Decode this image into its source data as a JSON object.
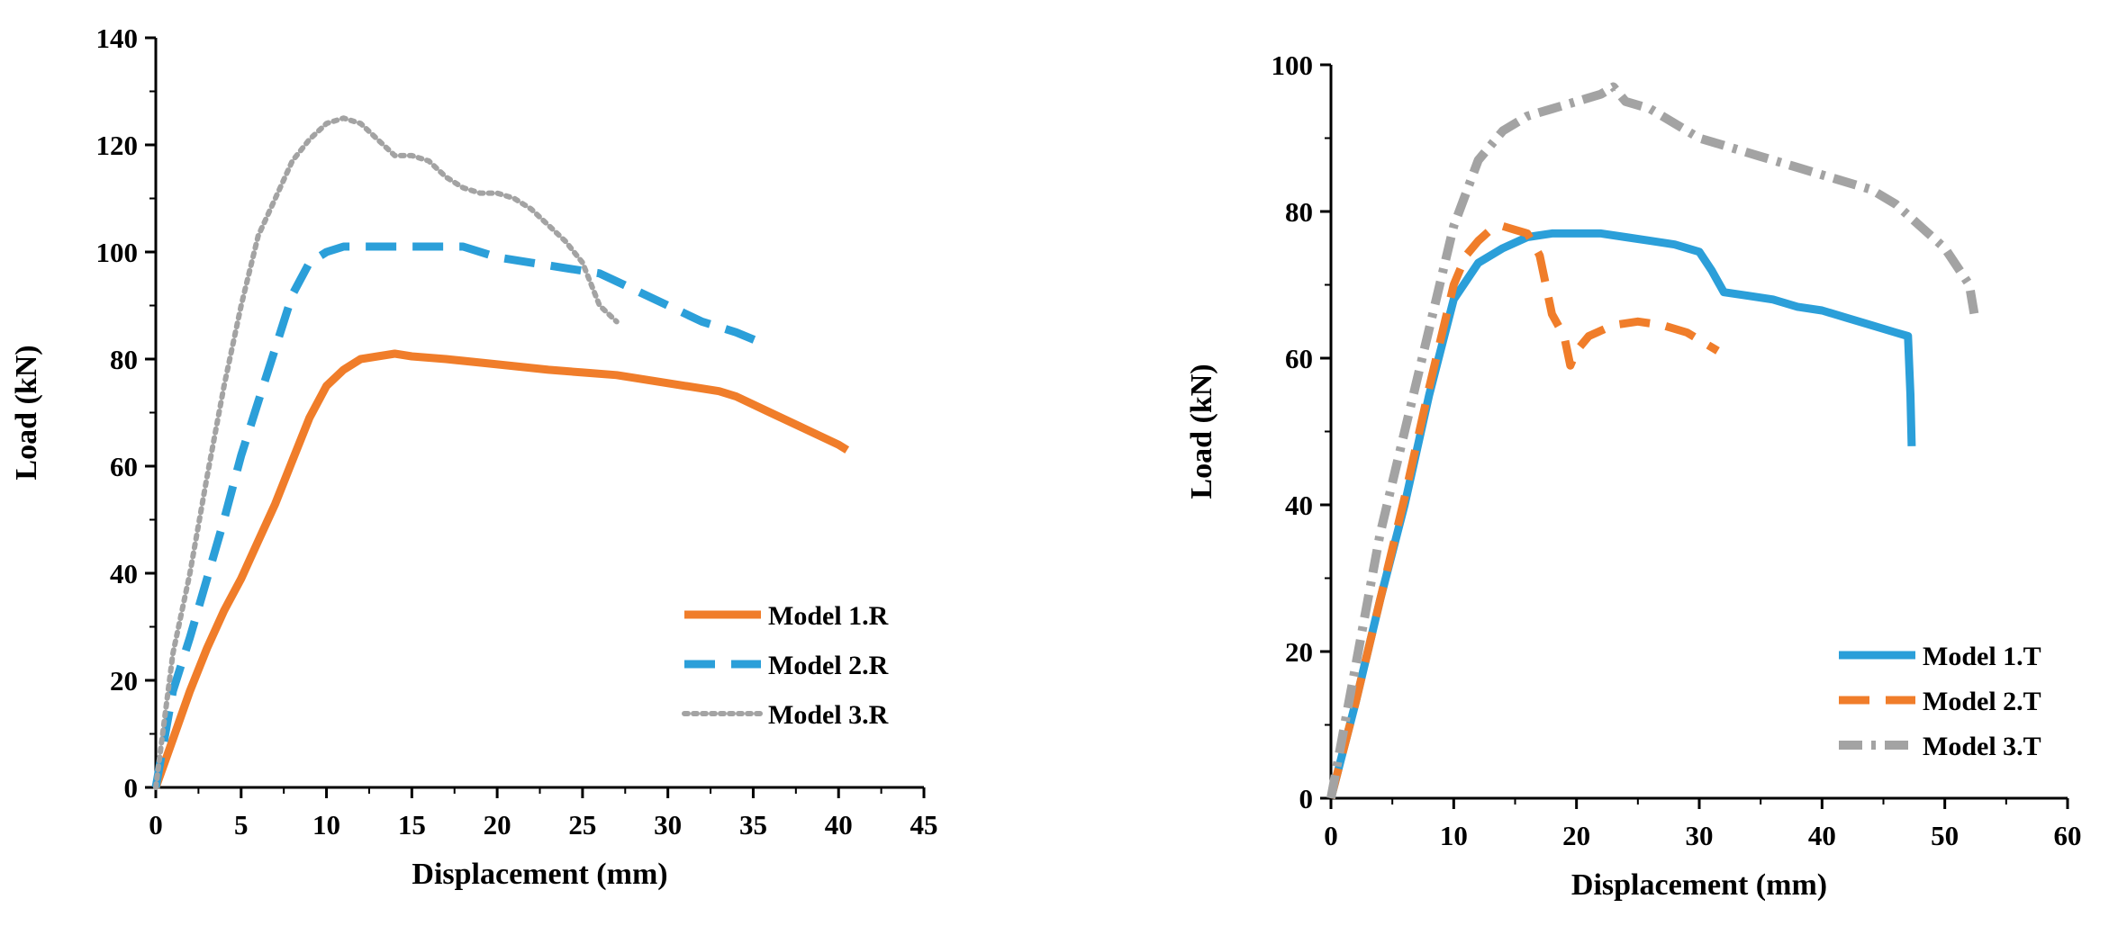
{
  "chart_data": [
    {
      "type": "line",
      "xlabel": "Displacement (mm)",
      "ylabel": "Load (kN)",
      "xlim": [
        0,
        45
      ],
      "ylim": [
        0,
        140
      ],
      "xticks": [
        0,
        5,
        10,
        15,
        20,
        25,
        30,
        35,
        40,
        45
      ],
      "yticks": [
        0,
        20,
        40,
        60,
        80,
        100,
        120,
        140
      ],
      "legend_position": "bottom-right",
      "series": [
        {
          "name": "Model 1.R",
          "color": "#F07D2A",
          "style": "solid",
          "x": [
            0,
            1,
            2,
            3,
            4,
            5,
            6,
            7,
            8,
            9,
            10,
            11,
            12,
            13,
            14,
            15,
            17,
            20,
            23,
            25,
            27,
            30,
            33,
            34,
            36,
            38,
            40,
            40.5
          ],
          "y": [
            0,
            9,
            18,
            26,
            33,
            39,
            46,
            53,
            61,
            69,
            75,
            78,
            80,
            80.5,
            81,
            80.5,
            80,
            79,
            78,
            77.5,
            77,
            75.5,
            74,
            73,
            70,
            67,
            64,
            63
          ]
        },
        {
          "name": "Model 2.R",
          "color": "#2B9FD9",
          "style": "dashed",
          "x": [
            0,
            1,
            2,
            3,
            4,
            5,
            6,
            7,
            8,
            9,
            10,
            11,
            12,
            14,
            16,
            18,
            20,
            22,
            24,
            26,
            28,
            30,
            32,
            34,
            35.5
          ],
          "y": [
            0,
            18,
            28,
            39,
            50,
            62,
            72,
            82,
            92,
            98,
            100,
            101,
            101,
            101,
            101,
            101,
            99,
            98,
            97,
            96,
            93,
            90,
            87,
            85,
            83
          ]
        },
        {
          "name": "Model 3.R",
          "color": "#A3A3A3",
          "style": "dotted",
          "x": [
            0,
            1,
            2,
            3,
            4,
            5,
            6,
            7,
            8,
            9,
            10,
            11,
            12,
            13,
            14,
            15,
            16,
            17,
            18,
            19,
            20,
            21,
            22,
            23,
            24,
            25,
            26,
            27
          ],
          "y": [
            0,
            25,
            40,
            58,
            75,
            90,
            103,
            110,
            117,
            121,
            124,
            125,
            124,
            121,
            118,
            118,
            117,
            114,
            112,
            111,
            111,
            110,
            108,
            105,
            102,
            98,
            90,
            87
          ]
        }
      ]
    },
    {
      "type": "line",
      "xlabel": "Displacement (mm)",
      "ylabel": "Load (kN)",
      "xlim": [
        0,
        60
      ],
      "ylim": [
        0,
        100
      ],
      "xticks": [
        0,
        10,
        20,
        30,
        40,
        50,
        60
      ],
      "yticks": [
        0,
        20,
        40,
        60,
        80,
        100
      ],
      "legend_position": "bottom-right",
      "series": [
        {
          "name": "Model 1.T",
          "color": "#2B9FD9",
          "style": "solid",
          "x": [
            0,
            2,
            4,
            6,
            8,
            10,
            12,
            14,
            16,
            18,
            20,
            22,
            24,
            26,
            28,
            30,
            31,
            32,
            34,
            36,
            38,
            40,
            42,
            44,
            46,
            47,
            47.2,
            47.3
          ],
          "y": [
            0,
            13,
            27,
            40,
            55,
            68,
            73,
            75,
            76.5,
            77,
            77,
            77,
            76.5,
            76,
            75.5,
            74.5,
            72,
            69,
            68.5,
            68,
            67,
            66.5,
            65.5,
            64.5,
            63.5,
            63,
            55,
            48
          ]
        },
        {
          "name": "Model 2.T",
          "color": "#F07D2A",
          "style": "dashed",
          "x": [
            0,
            2,
            4,
            6,
            8,
            10,
            11,
            12,
            13,
            14,
            15,
            16,
            17,
            18,
            19,
            19.5,
            20,
            21,
            23,
            25,
            27,
            29,
            31.5
          ],
          "y": [
            0,
            13,
            27,
            41,
            56,
            70,
            74,
            76,
            77.5,
            78,
            77.5,
            77,
            74,
            66,
            63,
            59,
            61,
            63,
            64.5,
            65,
            64.5,
            63.5,
            61
          ]
        },
        {
          "name": "Model 3.T",
          "color": "#A3A3A3",
          "style": "dashdot",
          "x": [
            0,
            2,
            4,
            6,
            8,
            10,
            12,
            14,
            16,
            18,
            20,
            22,
            23,
            24,
            26,
            28,
            30,
            32,
            35,
            38,
            40,
            42,
            44,
            46,
            48,
            50,
            52,
            52.5
          ],
          "y": [
            0,
            18,
            36,
            50,
            64,
            78,
            87,
            91,
            93,
            94,
            95,
            96,
            97,
            95,
            94,
            92,
            90,
            89,
            87.5,
            86,
            85,
            84,
            83,
            81,
            78,
            75,
            70,
            65
          ]
        }
      ]
    }
  ]
}
